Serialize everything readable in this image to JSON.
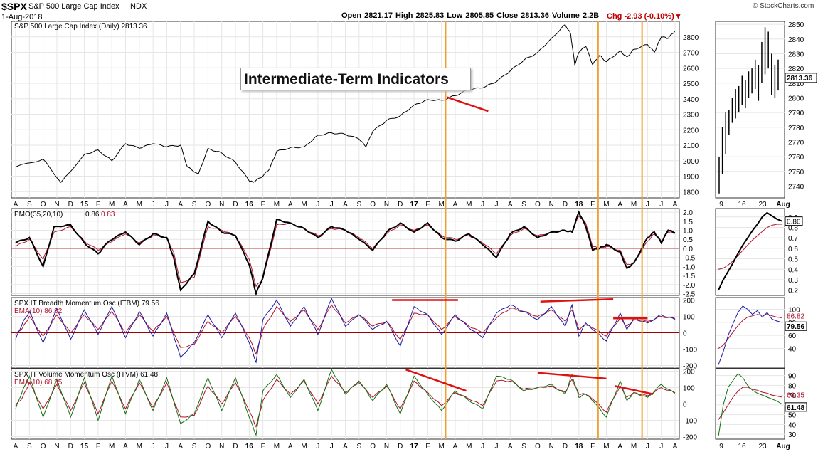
{
  "header": {
    "symbol": "$SPX",
    "name": "S&P 500 Large Cap Index",
    "exchange": "INDX",
    "date": "1-Aug-2018",
    "quote": "Open 2821.17  High 2825.83  Low 2805.85  Close 2813.36  Volume 2.2B",
    "change": "Chg -2.93 (-0.10%) ▾",
    "watermark": "© StockCharts.com"
  },
  "annotation": {
    "text": "Intermediate-Term Indicators"
  },
  "colors": {
    "price": "#000000",
    "signal": "#b0102a",
    "itbm": "#1a1aa0",
    "itvm": "#107010",
    "zero": "#a00000",
    "vline": "#f0a030",
    "trend": "#e01010",
    "grid": "#e6e6e6",
    "border": "#333333"
  },
  "chart_data": [
    {
      "type": "line",
      "name": "price",
      "legend": "S&P 500 Large Cap Index (Daily) 2813.36",
      "x_labels": [
        "A",
        "S",
        "O",
        "N",
        "D",
        "15",
        "F",
        "M",
        "A",
        "M",
        "J",
        "J",
        "A",
        "S",
        "O",
        "N",
        "D",
        "16",
        "F",
        "M",
        "A",
        "M",
        "J",
        "J",
        "A",
        "S",
        "O",
        "N",
        "D",
        "17",
        "F",
        "M",
        "A",
        "M",
        "J",
        "J",
        "A",
        "S",
        "O",
        "N",
        "D",
        "18",
        "F",
        "M",
        "A",
        "M",
        "J",
        "J",
        "A"
      ],
      "bold_labels": [
        "15",
        "16",
        "17",
        "18"
      ],
      "y_ticks": [
        1800,
        1900,
        2000,
        2100,
        2200,
        2300,
        2400,
        2500,
        2600,
        2700,
        2800
      ],
      "ylim": [
        1760,
        2900
      ],
      "x": [
        0,
        2,
        3.3,
        5,
        6,
        7,
        8,
        9,
        10,
        11,
        12,
        12.5,
        13.3,
        14,
        15,
        16,
        17,
        17.3,
        18,
        18.5,
        19,
        20,
        21,
        22,
        23,
        24,
        25,
        25.5,
        26,
        27,
        28,
        29,
        30,
        31,
        32,
        33,
        34,
        35,
        36,
        37,
        38,
        39,
        40,
        40.4,
        40.7,
        41,
        41.5,
        42,
        42.5,
        43,
        44,
        44.5,
        45,
        46,
        46.5,
        47,
        47.5,
        48
      ],
      "values": [
        1960,
        2010,
        1860,
        2040,
        2070,
        2000,
        2110,
        2080,
        2110,
        2090,
        2100,
        1960,
        1915,
        2080,
        2050,
        1990,
        1870,
        1860,
        1900,
        1950,
        2060,
        2085,
        2090,
        2165,
        2180,
        2170,
        2140,
        2090,
        2190,
        2260,
        2290,
        2360,
        2395,
        2390,
        2420,
        2460,
        2470,
        2510,
        2580,
        2650,
        2700,
        2790,
        2880,
        2820,
        2620,
        2700,
        2740,
        2620,
        2680,
        2640,
        2710,
        2670,
        2720,
        2750,
        2700,
        2800,
        2790,
        2840
      ]
    },
    {
      "type": "bar",
      "name": "price-daily-zoom",
      "x_labels": [
        "9",
        "16",
        "23",
        "Aug"
      ],
      "y_ticks": [
        2740,
        2750,
        2760,
        2770,
        2780,
        2790,
        2800,
        2810,
        2820,
        2830,
        2840,
        2850
      ],
      "ylim": [
        2732,
        2852
      ],
      "last_value": "2813.36",
      "bars": [
        [
          2735,
          2760
        ],
        [
          2748,
          2780
        ],
        [
          2762,
          2790
        ],
        [
          2775,
          2792
        ],
        [
          2783,
          2800
        ],
        [
          2786,
          2806
        ],
        [
          2790,
          2808
        ],
        [
          2795,
          2815
        ],
        [
          2793,
          2812
        ],
        [
          2800,
          2818
        ],
        [
          2803,
          2820
        ],
        [
          2806,
          2826
        ],
        [
          2798,
          2822
        ],
        [
          2810,
          2838
        ],
        [
          2816,
          2848
        ],
        [
          2820,
          2845
        ],
        [
          2802,
          2830
        ],
        [
          2800,
          2822
        ],
        [
          2805,
          2826
        ]
      ]
    },
    {
      "type": "line",
      "name": "pmo",
      "legend_label": "PMO(35,20,10)",
      "legend_value1": "0.86",
      "legend_value2": "0.83",
      "y_ticks": [
        -2.5,
        -2.0,
        -1.5,
        -1.0,
        -0.5,
        0.0,
        0.5,
        1.0,
        1.5,
        2.0
      ],
      "y_tick_labels": [
        "-2.5",
        "-2.0",
        "-1.5",
        "-1.0",
        "-0.5",
        "0.0",
        "0.5",
        "1.0",
        "1.5",
        "2.0"
      ],
      "ylim": [
        -2.6,
        2.2
      ],
      "x": [
        0,
        1,
        2,
        2.8,
        4,
        5,
        6,
        6.8,
        8,
        9,
        10,
        11,
        11.5,
        12,
        13,
        14,
        15,
        16,
        17,
        17.5,
        18,
        19,
        20,
        21,
        22,
        23,
        24,
        25,
        26,
        27,
        28,
        29,
        30,
        31,
        32,
        33,
        34,
        35,
        36,
        37,
        38,
        39,
        40,
        40.5,
        41,
        41.5,
        42,
        42.5,
        43,
        44,
        44.5,
        45,
        46,
        46.5,
        47,
        47.5,
        48
      ],
      "values": [
        0.3,
        0.6,
        -1.0,
        1.2,
        1.3,
        0.3,
        -0.3,
        0.4,
        0.9,
        0.2,
        0.8,
        0.6,
        -0.5,
        -2.3,
        -1.4,
        1.5,
        0.9,
        0.7,
        -0.9,
        -2.5,
        -1.6,
        1.6,
        1.4,
        1.1,
        0.6,
        1.2,
        1.0,
        0.5,
        -0.1,
        0.9,
        1.4,
        0.9,
        1.4,
        0.6,
        0.4,
        0.8,
        0.2,
        -0.5,
        0.8,
        1.2,
        0.6,
        0.9,
        1.0,
        0.9,
        2.0,
        1.2,
        -0.1,
        0.0,
        0.2,
        -0.2,
        -1.1,
        -0.8,
        0.6,
        0.9,
        0.3,
        1.0,
        0.86
      ],
      "signal": [
        0.1,
        0.5,
        -0.6,
        0.9,
        1.2,
        0.4,
        -0.1,
        0.3,
        0.8,
        0.3,
        0.7,
        0.6,
        -0.2,
        -1.9,
        -1.6,
        1.2,
        1.0,
        0.7,
        -0.6,
        -2.1,
        -1.7,
        1.3,
        1.4,
        1.1,
        0.7,
        1.1,
        1.0,
        0.6,
        0.0,
        0.8,
        1.3,
        1.0,
        1.3,
        0.7,
        0.5,
        0.7,
        0.3,
        -0.3,
        0.7,
        1.1,
        0.7,
        0.9,
        1.0,
        0.9,
        1.8,
        1.4,
        0.1,
        0.0,
        0.1,
        -0.1,
        -0.9,
        -0.8,
        0.4,
        0.8,
        0.4,
        0.9,
        0.83
      ],
      "zoom_y_ticks": [
        0.2,
        0.3,
        0.4,
        0.5,
        0.6,
        0.7,
        0.8,
        0.9
      ],
      "zoom_ylim": [
        0.15,
        0.98
      ],
      "zoom_values": [
        0.2,
        0.3,
        0.38,
        0.46,
        0.55,
        0.63,
        0.7,
        0.77,
        0.83,
        0.9,
        0.94,
        0.91,
        0.88,
        0.86
      ],
      "zoom_signal": [
        0.4,
        0.41,
        0.44,
        0.48,
        0.53,
        0.58,
        0.63,
        0.68,
        0.72,
        0.76,
        0.8,
        0.82,
        0.83,
        0.83
      ]
    },
    {
      "type": "line",
      "name": "itbm",
      "legend": "SPX IT Breadth Momentum Osc (ITBM) 79.56",
      "legend_ema": "EMA(10) 86.82",
      "y_ticks": [
        -200,
        -100,
        0,
        100,
        200
      ],
      "ylim": [
        -215,
        215
      ],
      "x": [
        0,
        0.5,
        1,
        2,
        3,
        4,
        5,
        6,
        7,
        8,
        9,
        10,
        11,
        12,
        13,
        14,
        15,
        16,
        17,
        17.5,
        18,
        19,
        20,
        21,
        22,
        23,
        24,
        25,
        26,
        27,
        28,
        29,
        30,
        31,
        32,
        33,
        34,
        35,
        36,
        37,
        38,
        39,
        40,
        40.5,
        41,
        41.5,
        42,
        43,
        44,
        44.5,
        45,
        46,
        47,
        48
      ],
      "values": [
        -40,
        60,
        130,
        -60,
        150,
        -40,
        140,
        -10,
        160,
        -30,
        130,
        -20,
        120,
        -150,
        -60,
        110,
        -30,
        120,
        -60,
        -180,
        80,
        200,
        40,
        160,
        -10,
        210,
        40,
        110,
        20,
        70,
        -80,
        160,
        110,
        -10,
        110,
        30,
        -30,
        120,
        170,
        130,
        80,
        160,
        40,
        170,
        -20,
        60,
        20,
        -50,
        120,
        20,
        90,
        60,
        110,
        80
      ],
      "ema": [
        -10,
        30,
        100,
        -20,
        110,
        0,
        110,
        20,
        130,
        0,
        110,
        10,
        100,
        -90,
        -70,
        70,
        0,
        100,
        -30,
        -130,
        20,
        160,
        70,
        140,
        20,
        170,
        60,
        110,
        40,
        70,
        -40,
        120,
        110,
        20,
        100,
        40,
        0,
        90,
        150,
        130,
        100,
        140,
        70,
        140,
        20,
        50,
        30,
        -20,
        90,
        40,
        80,
        70,
        100,
        87
      ]
    },
    {
      "type": "line",
      "name": "itvm",
      "legend": "SPX IT Volume Momentum Osc (ITVM) 61.48",
      "legend_ema": "EMA(10) 68.35",
      "y_ticks": [
        -200,
        -100,
        0,
        100,
        200
      ],
      "ylim": [
        -215,
        215
      ],
      "x": [
        0,
        0.5,
        1,
        2,
        3,
        4,
        5,
        6,
        7,
        8,
        9,
        10,
        11,
        12,
        13,
        14,
        15,
        16,
        17,
        17.5,
        18,
        19,
        20,
        21,
        22,
        23,
        24,
        25,
        26,
        27,
        28,
        29,
        30,
        31,
        32,
        33,
        34,
        35,
        36,
        37,
        38,
        39,
        40,
        40.5,
        41,
        41.5,
        42,
        43,
        44,
        44.5,
        45,
        46,
        47,
        48
      ],
      "values": [
        -30,
        80,
        170,
        -80,
        150,
        -80,
        160,
        -100,
        170,
        -60,
        150,
        -40,
        160,
        -120,
        -60,
        160,
        -40,
        160,
        -80,
        -190,
        80,
        180,
        40,
        150,
        -40,
        210,
        60,
        140,
        20,
        120,
        -60,
        170,
        60,
        -40,
        80,
        20,
        -30,
        170,
        150,
        80,
        100,
        120,
        60,
        180,
        40,
        60,
        20,
        -80,
        140,
        20,
        70,
        40,
        120,
        61
      ],
      "ema": [
        -10,
        40,
        130,
        -30,
        120,
        -40,
        130,
        -60,
        140,
        -30,
        130,
        -20,
        130,
        -80,
        -70,
        110,
        0,
        130,
        -40,
        -140,
        20,
        150,
        60,
        140,
        0,
        170,
        70,
        130,
        40,
        110,
        -30,
        140,
        70,
        -10,
        70,
        30,
        -10,
        140,
        140,
        90,
        100,
        110,
        70,
        150,
        60,
        60,
        30,
        -50,
        110,
        40,
        70,
        50,
        100,
        68
      ]
    },
    {
      "type": "line",
      "name": "itbm-zoom",
      "y_ticks": [
        40,
        60,
        80,
        100
      ],
      "ylim": [
        10,
        118
      ],
      "last_value": "79.56",
      "last_ema": "86.82",
      "values": [
        15,
        35,
        60,
        78,
        95,
        105,
        100,
        92,
        98,
        88,
        95,
        85,
        82,
        80
      ],
      "ema": [
        40,
        45,
        55,
        65,
        75,
        83,
        88,
        90,
        92,
        91,
        92,
        90,
        88,
        87
      ]
    },
    {
      "type": "line",
      "name": "itvm-zoom",
      "y_ticks": [
        30,
        40,
        50,
        60,
        70,
        80,
        90
      ],
      "ylim": [
        25,
        97
      ],
      "last_value": "61.48",
      "last_ema": "68.35",
      "values": [
        28,
        60,
        78,
        85,
        92,
        88,
        80,
        75,
        72,
        70,
        68,
        66,
        64,
        61
      ],
      "ema": [
        45,
        52,
        60,
        68,
        74,
        78,
        78,
        76,
        75,
        73,
        72,
        70,
        69,
        68
      ]
    }
  ]
}
